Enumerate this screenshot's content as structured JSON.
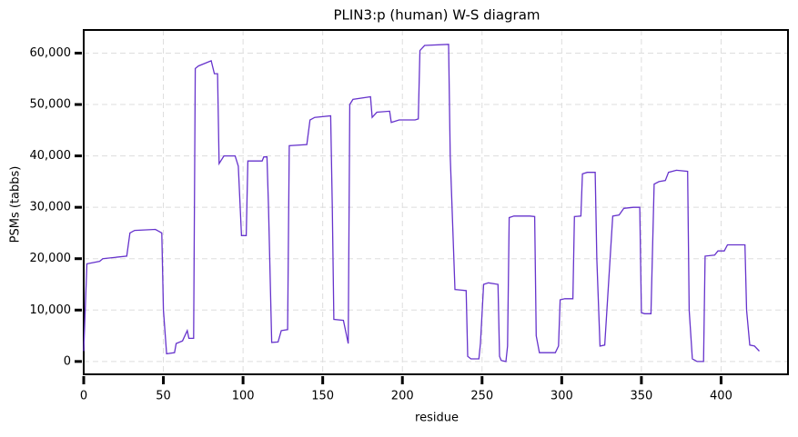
{
  "chart_data": {
    "type": "line",
    "title": "PLIN3:p (human) W-S diagram",
    "x_label": "residue",
    "y_label": "PSMs (tabbs)",
    "color": "#6633cc",
    "grid": true,
    "xlim": [
      0,
      442
    ],
    "ylim": [
      -2500,
      64500
    ],
    "xticks": [
      0,
      50,
      100,
      150,
      200,
      250,
      300,
      350,
      400
    ],
    "yticks": [
      0,
      {
        "value": 10000,
        "label": "10,000"
      },
      {
        "value": 20000,
        "label": "20,000"
      },
      {
        "value": 30000,
        "label": "30,000"
      },
      {
        "value": 40000,
        "label": "40,000"
      },
      {
        "value": 50000,
        "label": "50,000"
      },
      {
        "value": 60000,
        "label": "60,000"
      }
    ],
    "x": [
      0,
      2,
      10,
      12,
      27,
      29,
      32,
      45,
      49,
      50,
      52,
      57,
      58,
      62,
      65,
      66,
      69,
      70,
      72,
      80,
      82,
      84,
      85,
      88,
      95,
      97,
      99,
      102,
      103,
      112,
      113,
      115,
      116,
      118,
      122,
      124,
      128,
      129,
      140,
      142,
      145,
      155,
      156,
      157,
      163,
      166,
      167,
      169,
      180,
      181,
      184,
      192,
      193,
      198,
      208,
      210,
      211,
      214,
      229,
      230,
      233,
      240,
      241,
      243,
      248,
      249,
      251,
      254,
      260,
      261,
      262,
      265,
      266,
      267,
      270,
      280,
      283,
      284,
      286,
      296,
      298,
      299,
      302,
      307,
      308,
      312,
      313,
      316,
      321,
      322,
      324,
      327,
      332,
      336,
      339,
      345,
      349,
      350,
      352,
      356,
      358,
      361,
      365,
      367,
      372,
      379,
      380,
      382,
      385,
      389,
      390,
      396,
      398,
      402,
      404,
      410,
      415,
      416,
      418,
      421,
      424
    ],
    "values": [
      2000,
      19000,
      19500,
      20000,
      20500,
      25000,
      25500,
      25700,
      25000,
      10000,
      1500,
      1700,
      3500,
      4000,
      6000,
      4500,
      4500,
      57000,
      57500,
      58500,
      56000,
      56000,
      38500,
      40000,
      40000,
      38000,
      24500,
      24500,
      39000,
      39000,
      39800,
      39800,
      30000,
      3700,
      3800,
      6000,
      6200,
      42000,
      42200,
      47000,
      47500,
      47800,
      30000,
      8200,
      8000,
      3500,
      50000,
      51000,
      51500,
      47500,
      48500,
      48700,
      46500,
      47000,
      47000,
      47200,
      60500,
      61500,
      61700,
      40000,
      14000,
      13800,
      1000,
      500,
      500,
      3500,
      15000,
      15300,
      15000,
      1000,
      200,
      0,
      3000,
      28000,
      28300,
      28300,
      28200,
      5000,
      1700,
      1700,
      3000,
      12000,
      12200,
      12200,
      28200,
      28300,
      36500,
      36800,
      36800,
      20000,
      3000,
      3200,
      28300,
      28500,
      29800,
      30000,
      30000,
      9500,
      9300,
      9300,
      34500,
      35000,
      35200,
      36800,
      37200,
      37000,
      10000,
      500,
      0,
      0,
      20500,
      20700,
      21500,
      21500,
      22700,
      22700,
      22700,
      10000,
      3200,
      3000,
      2000
    ]
  }
}
